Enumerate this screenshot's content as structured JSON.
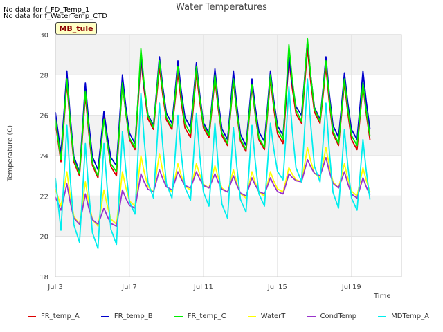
{
  "header": {
    "nodata_lines": [
      "No data for f_FD_Temp_1",
      "No data for f_WaterTemp_CTD"
    ],
    "site_tag": "MB_tule"
  },
  "chart_data": {
    "type": "line",
    "title": "Water Temperatures",
    "xlabel": "Time",
    "ylabel": "Temperature (C)",
    "ylim": [
      18,
      30
    ],
    "xlim": [
      0,
      18.7
    ],
    "yticks": [
      18,
      20,
      22,
      24,
      26,
      28,
      30
    ],
    "xticks": [
      {
        "label": "Jul 3",
        "value": 0
      },
      {
        "label": "Jul 7",
        "value": 4
      },
      {
        "label": "Jul 11",
        "value": 8
      },
      {
        "label": "Jul 15",
        "value": 12
      },
      {
        "label": "Jul 19",
        "value": 16
      }
    ],
    "grid": true,
    "banded_background": true,
    "legend_position": "bottom",
    "series": [
      {
        "name": "FR_temp_A",
        "color": "#dd0000",
        "daily_peaks": [
          27.6,
          27.0,
          26.0,
          27.6,
          28.8,
          28.4,
          28.1,
          28.1,
          27.8,
          27.7,
          27.4,
          27.8,
          28.8,
          29.3,
          28.4,
          27.6,
          27.5
        ],
        "daily_troughs": [
          23.7,
          23.0,
          22.9,
          23.0,
          24.3,
          25.3,
          25.3,
          24.9,
          24.9,
          24.5,
          24.2,
          24.3,
          24.6,
          25.6,
          25.6,
          24.5,
          24.3
        ]
      },
      {
        "name": "FR_temp_B",
        "color": "#0000cc",
        "daily_peaks": [
          28.2,
          27.6,
          26.2,
          28.0,
          29.0,
          28.9,
          28.7,
          28.6,
          28.3,
          28.2,
          27.8,
          28.2,
          28.9,
          29.7,
          28.9,
          28.1,
          28.2
        ],
        "daily_troughs": [
          24.1,
          23.2,
          23.3,
          23.5,
          24.6,
          25.5,
          25.6,
          25.4,
          25.1,
          24.8,
          24.5,
          24.7,
          25.0,
          26.0,
          25.8,
          24.9,
          24.8
        ]
      },
      {
        "name": "FR_temp_C",
        "color": "#00ee00",
        "daily_peaks": [
          27.8,
          27.2,
          25.8,
          27.6,
          29.3,
          28.7,
          28.4,
          28.4,
          28.0,
          27.8,
          27.5,
          28.0,
          29.5,
          29.8,
          28.7,
          27.8,
          27.6
        ],
        "daily_troughs": [
          23.8,
          23.1,
          23.0,
          23.2,
          24.4,
          25.4,
          25.4,
          25.1,
          25.0,
          24.6,
          24.3,
          24.4,
          24.8,
          25.7,
          25.7,
          24.6,
          24.5
        ]
      },
      {
        "name": "WaterT",
        "color": "#ffff00",
        "daily_peaks": [
          23.2,
          22.7,
          22.3,
          23.2,
          24.0,
          24.1,
          23.6,
          23.6,
          23.5,
          23.3,
          23.2,
          23.2,
          23.4,
          24.4,
          24.4,
          23.6,
          23.4
        ],
        "daily_troughs": [
          21.5,
          20.6,
          20.5,
          20.6,
          21.5,
          22.2,
          22.2,
          22.3,
          22.4,
          22.2,
          21.9,
          22.0,
          22.2,
          22.7,
          22.9,
          22.4,
          22.0
        ]
      },
      {
        "name": "CondTemp",
        "color": "#9933cc",
        "daily_peaks": [
          22.6,
          22.1,
          21.4,
          22.3,
          23.1,
          23.3,
          23.2,
          23.2,
          23.1,
          23.0,
          22.9,
          22.9,
          23.1,
          23.8,
          23.9,
          23.2,
          22.9
        ],
        "daily_troughs": [
          21.3,
          20.6,
          20.6,
          20.5,
          21.4,
          22.2,
          22.3,
          22.4,
          22.4,
          22.2,
          22.0,
          22.1,
          22.1,
          22.7,
          23.0,
          22.4,
          21.9
        ]
      },
      {
        "name": "MDTemp_A",
        "color": "#00eeee",
        "daily_peaks": [
          25.5,
          24.6,
          24.6,
          25.2,
          27.1,
          26.6,
          26.0,
          26.1,
          25.6,
          25.4,
          25.5,
          25.6,
          27.4,
          27.8,
          26.6,
          25.3,
          24.8
        ],
        "daily_troughs": [
          20.3,
          19.7,
          19.4,
          19.6,
          21.1,
          21.9,
          21.9,
          21.8,
          21.5,
          20.9,
          21.2,
          21.5,
          22.8,
          22.7,
          22.7,
          21.4,
          21.3
        ]
      }
    ]
  }
}
